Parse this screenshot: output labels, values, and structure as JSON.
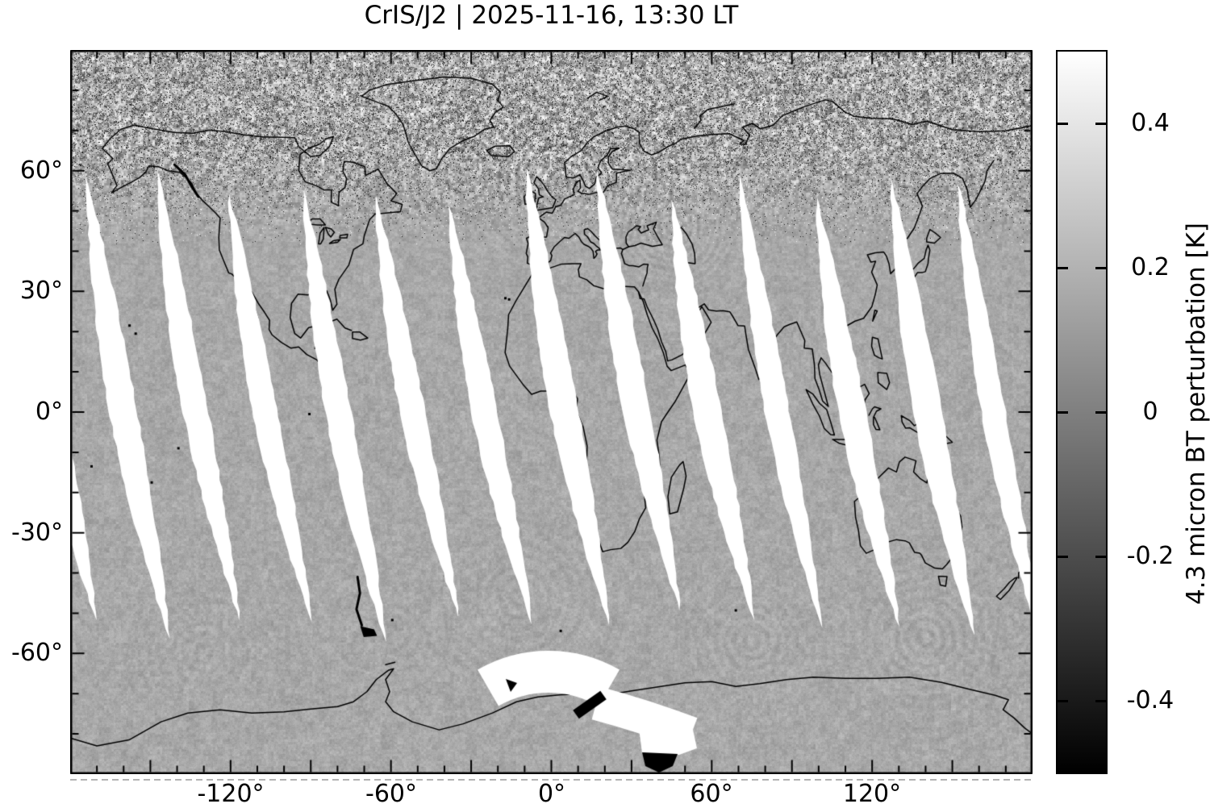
{
  "chart_data": {
    "type": "heatmap",
    "title": "CrIS/J2 | 2025-11-16, 13:30 LT",
    "instrument": "CrIS/J2",
    "datetime_local": "2025-11-16, 13:30 LT",
    "projection": "global equirectangular map, longitude -180 to 180, latitude -90 to 90",
    "x_axis": {
      "range_deg": [
        -180,
        180
      ],
      "tick_labels": [
        "-120°",
        "-60°",
        "0°",
        "60°",
        "120°"
      ],
      "tick_values_deg": [
        -120,
        -60,
        0,
        60,
        120
      ],
      "major_tick_step_deg": 30,
      "minor_tick_step_deg": 10
    },
    "y_axis": {
      "range_deg": [
        -90,
        90
      ],
      "tick_labels": [
        "60°",
        "30°",
        "0°",
        "-30°",
        "-60°"
      ],
      "tick_values_deg": [
        60,
        30,
        0,
        -30,
        -60
      ],
      "major_tick_step_deg": 30,
      "minor_tick_step_deg": 10
    },
    "colorbar": {
      "label": "4.3 micron BT perturbation [K]",
      "tick_labels": [
        "0.4",
        "0.2",
        "0",
        "-0.2",
        "-0.4"
      ],
      "tick_values": [
        0.4,
        0.2,
        0,
        -0.2,
        -0.4
      ],
      "value_range": [
        -0.5,
        0.5
      ],
      "colormap": "grayscale: black (-0.5 K) to white (+0.5 K)"
    },
    "map_features": {
      "field": "4.3 micron brightness temperature perturbation",
      "mean_background_gray": "#a8a8a8",
      "coastline_color": "#000000",
      "swath_gaps": {
        "description": "white lens-shaped no-data gaps between satellite swaths, tilted so the lower tip sits east of the upper tip",
        "count_visible": 13,
        "approx_spacing_deg_lon": 27,
        "lat_extent_deg": [
          -52,
          55
        ],
        "max_width_deg_lon": 10,
        "color": "#ffffff"
      },
      "high_latitude_noise_band": {
        "description": "high-contrast black/white speckle with gravity-wave ripple packets poleward of about 45N, strongest over the North Atlantic, Europe, Scandinavia and Siberia"
      },
      "wave_packets": [
        "concentric ripples over Europe / North Atlantic",
        "ripples over central and east Asia",
        "ripples southeast of Australia",
        "faint arcs in the Southern Ocean and South Atlantic"
      ],
      "antarctic_saturated_patches": {
        "description": "two bright white fan-shaped swath patches with small saturated black wedges near the Antarctic coast, roughly longitude 0 to 55 E"
      }
    }
  },
  "colors": {
    "background": "#ffffff",
    "frame_and_text": "#000000",
    "swath_gap": "#ffffff",
    "map_base_gray": "#a8a8a8"
  }
}
